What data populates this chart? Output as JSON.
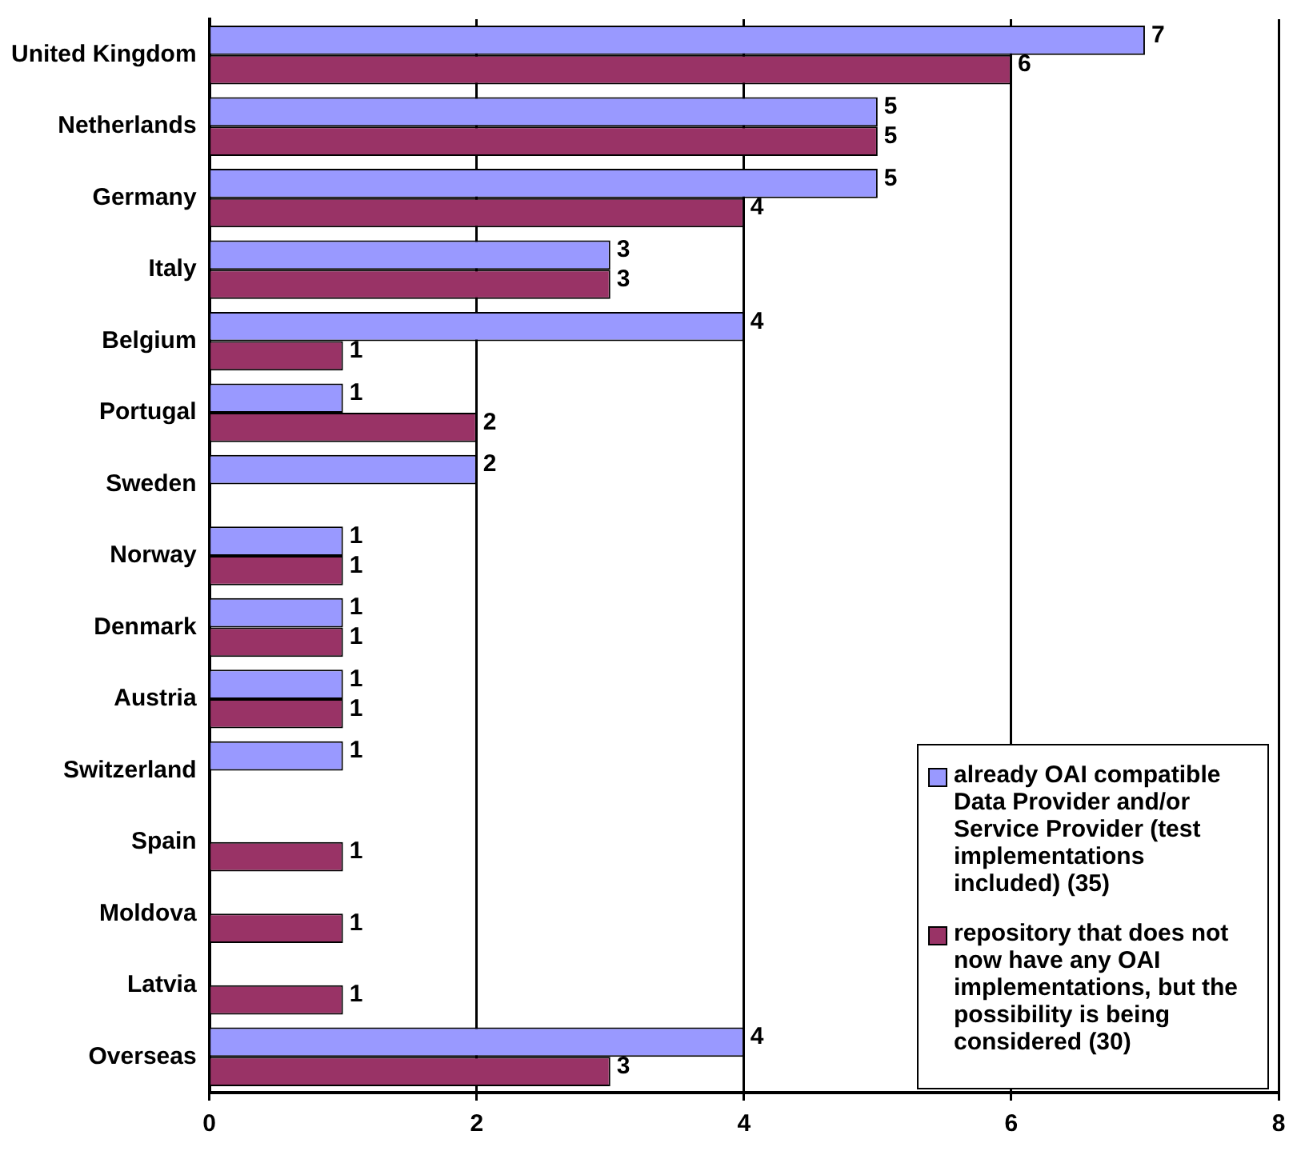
{
  "chart_data": {
    "type": "bar",
    "orientation": "horizontal",
    "categories": [
      "United Kingdom",
      "Netherlands",
      "Germany",
      "Italy",
      "Belgium",
      "Portugal",
      "Sweden",
      "Norway",
      "Denmark",
      "Austria",
      "Switzerland",
      "Spain",
      "Moldova",
      "Latvia",
      "Overseas"
    ],
    "series": [
      {
        "name": "already OAI compatible Data Provider and/or Service Provider (test implementations included) (35)",
        "color": "#9999ff",
        "values": [
          7,
          5,
          5,
          3,
          4,
          1,
          2,
          1,
          1,
          1,
          1,
          null,
          null,
          null,
          4
        ]
      },
      {
        "name": "repository that does not now have any OAI implementations, but the possibility is being considered (30)",
        "color": "#993366",
        "values": [
          6,
          5,
          4,
          3,
          1,
          2,
          null,
          1,
          1,
          1,
          null,
          1,
          1,
          1,
          3
        ]
      }
    ],
    "xlim": [
      0,
      8
    ],
    "xticks": [
      0,
      2,
      4,
      6,
      8
    ],
    "grid": "x",
    "legend": "bottom right",
    "data_labels": true
  }
}
